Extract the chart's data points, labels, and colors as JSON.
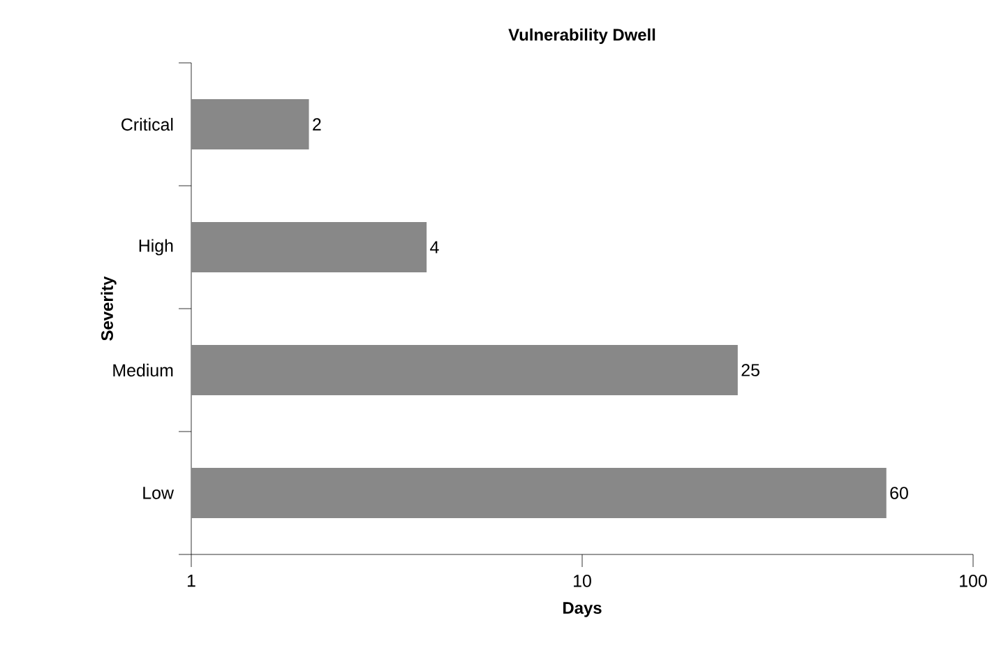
{
  "chart_data": {
    "type": "bar",
    "orientation": "horizontal",
    "title": "Vulnerability Dwell",
    "xlabel": "Days",
    "ylabel": "Severity",
    "categories": [
      "Critical",
      "High",
      "Medium",
      "Low"
    ],
    "values": [
      2,
      4,
      25,
      60
    ],
    "color": "#888888",
    "data_labels": true,
    "log": "x",
    "xlim": [
      1,
      100
    ],
    "xticks": [
      1,
      10,
      100
    ],
    "grid": false
  }
}
